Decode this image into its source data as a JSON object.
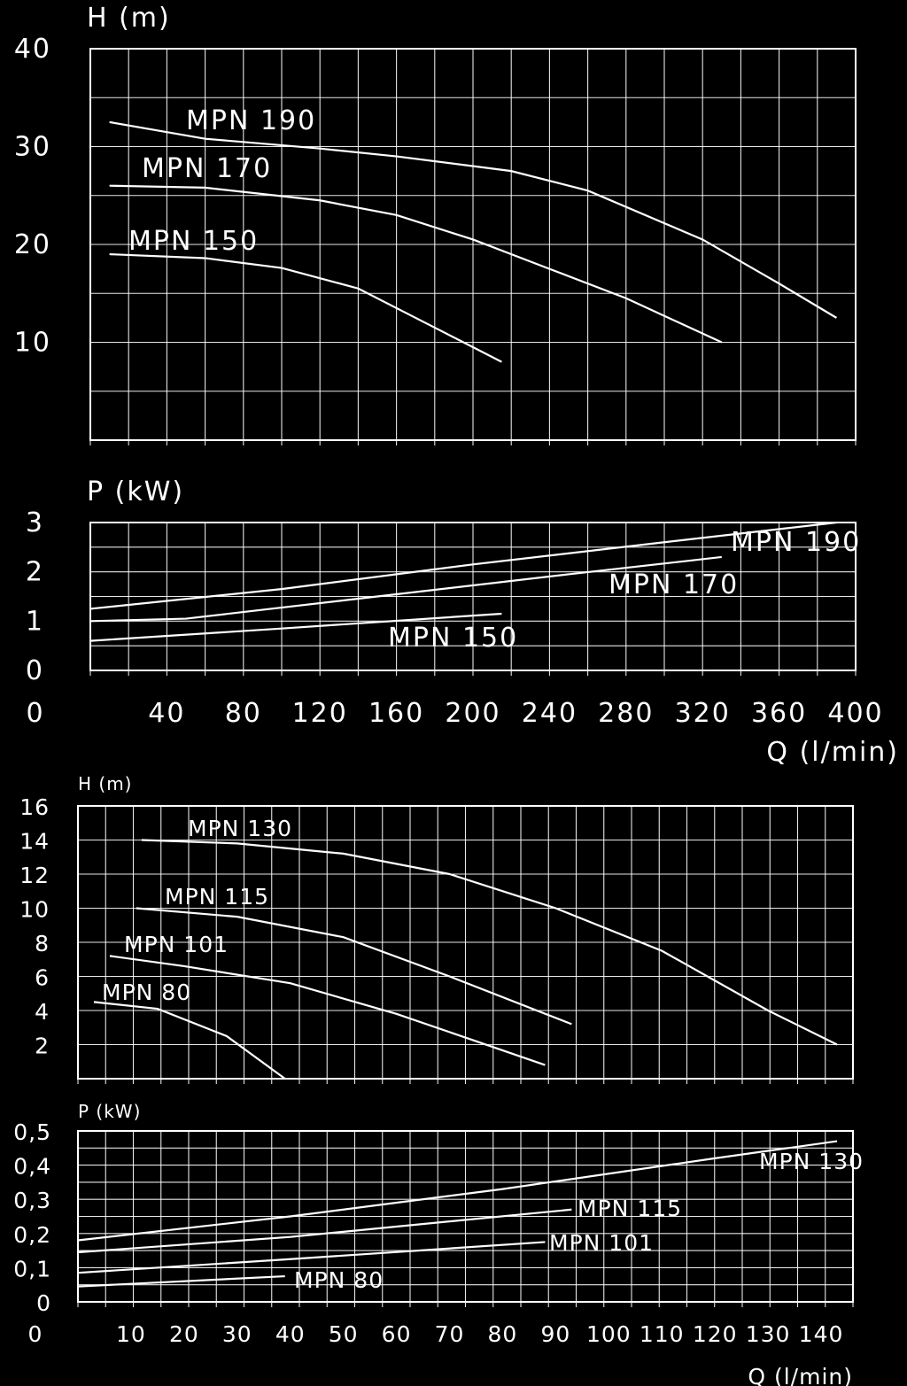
{
  "chart_data": [
    {
      "id": "upper_head",
      "type": "line",
      "ylabel": "H (m)",
      "ylim": [
        0,
        40
      ],
      "xlim": [
        0,
        400
      ],
      "yticks": [
        10,
        20,
        30,
        40
      ],
      "series": [
        {
          "name": "MPN 190",
          "x": [
            10,
            60,
            120,
            160,
            220,
            260,
            320,
            360,
            390
          ],
          "y": [
            32.5,
            30.8,
            29.8,
            29,
            27.5,
            25.5,
            20.5,
            16,
            12.5
          ]
        },
        {
          "name": "MPN 170",
          "x": [
            10,
            60,
            120,
            160,
            200,
            240,
            280,
            330
          ],
          "y": [
            26,
            25.8,
            24.5,
            23,
            20.5,
            17.5,
            14.5,
            10
          ]
        },
        {
          "name": "MPN 150",
          "x": [
            10,
            60,
            100,
            140,
            180,
            215
          ],
          "y": [
            19,
            18.6,
            17.6,
            15.5,
            11.5,
            8
          ]
        }
      ]
    },
    {
      "id": "upper_power",
      "type": "line",
      "ylabel": "P (kW)",
      "xlabel": "Q (l/min)",
      "ylim": [
        0,
        3
      ],
      "xlim": [
        0,
        400
      ],
      "yticks": [
        0,
        1,
        2,
        3
      ],
      "xticks": [
        40,
        80,
        120,
        160,
        200,
        240,
        280,
        320,
        360,
        400
      ],
      "series": [
        {
          "name": "MPN 190",
          "x": [
            0,
            100,
            200,
            300,
            390
          ],
          "y": [
            1.25,
            1.65,
            2.15,
            2.6,
            3.0
          ]
        },
        {
          "name": "MPN 170",
          "x": [
            0,
            50,
            150,
            250,
            330
          ],
          "y": [
            1.0,
            1.05,
            1.5,
            1.95,
            2.3
          ]
        },
        {
          "name": "MPN 150",
          "x": [
            0,
            100,
            215
          ],
          "y": [
            0.6,
            0.85,
            1.15
          ]
        }
      ]
    },
    {
      "id": "lower_head",
      "type": "line",
      "ylabel": "H (m)",
      "ylim": [
        0,
        16
      ],
      "xlim": [
        0,
        146
      ],
      "yticks": [
        2,
        4,
        6,
        8,
        10,
        12,
        14,
        16
      ],
      "series": [
        {
          "name": "MPN 130",
          "x": [
            12,
            30,
            50,
            70,
            90,
            110,
            130,
            143
          ],
          "y": [
            14,
            13.8,
            13.2,
            12,
            10,
            7.5,
            4,
            2
          ]
        },
        {
          "name": "MPN 115",
          "x": [
            11,
            30,
            50,
            70,
            93
          ],
          "y": [
            10,
            9.5,
            8.3,
            6,
            3.2
          ]
        },
        {
          "name": "MPN 101",
          "x": [
            6,
            20,
            40,
            60,
            75,
            88
          ],
          "y": [
            7.2,
            6.6,
            5.6,
            3.8,
            2.2,
            0.8
          ]
        },
        {
          "name": "MPN 80",
          "x": [
            3,
            15,
            28,
            39
          ],
          "y": [
            4.5,
            4.1,
            2.5,
            0
          ]
        }
      ]
    },
    {
      "id": "lower_power",
      "type": "line",
      "ylabel": "P (kW)",
      "xlabel": "Q (l/min)",
      "ylim": [
        0,
        0.5
      ],
      "xlim": [
        0,
        146
      ],
      "yticks": [
        "0",
        "0,1",
        "0,2",
        "0,3",
        "0,4",
        "0,5"
      ],
      "xticks": [
        10,
        20,
        30,
        40,
        50,
        60,
        70,
        80,
        90,
        100,
        110,
        120,
        130,
        140
      ],
      "series": [
        {
          "name": "MPN 130",
          "x": [
            0,
            40,
            80,
            120,
            143
          ],
          "y": [
            0.18,
            0.25,
            0.33,
            0.42,
            0.47
          ]
        },
        {
          "name": "MPN 115",
          "x": [
            0,
            40,
            93
          ],
          "y": [
            0.145,
            0.19,
            0.27
          ]
        },
        {
          "name": "MPN 101",
          "x": [
            0,
            40,
            88
          ],
          "y": [
            0.085,
            0.125,
            0.175
          ]
        },
        {
          "name": "MPN 80",
          "x": [
            0,
            39
          ],
          "y": [
            0.045,
            0.075
          ]
        }
      ]
    }
  ]
}
